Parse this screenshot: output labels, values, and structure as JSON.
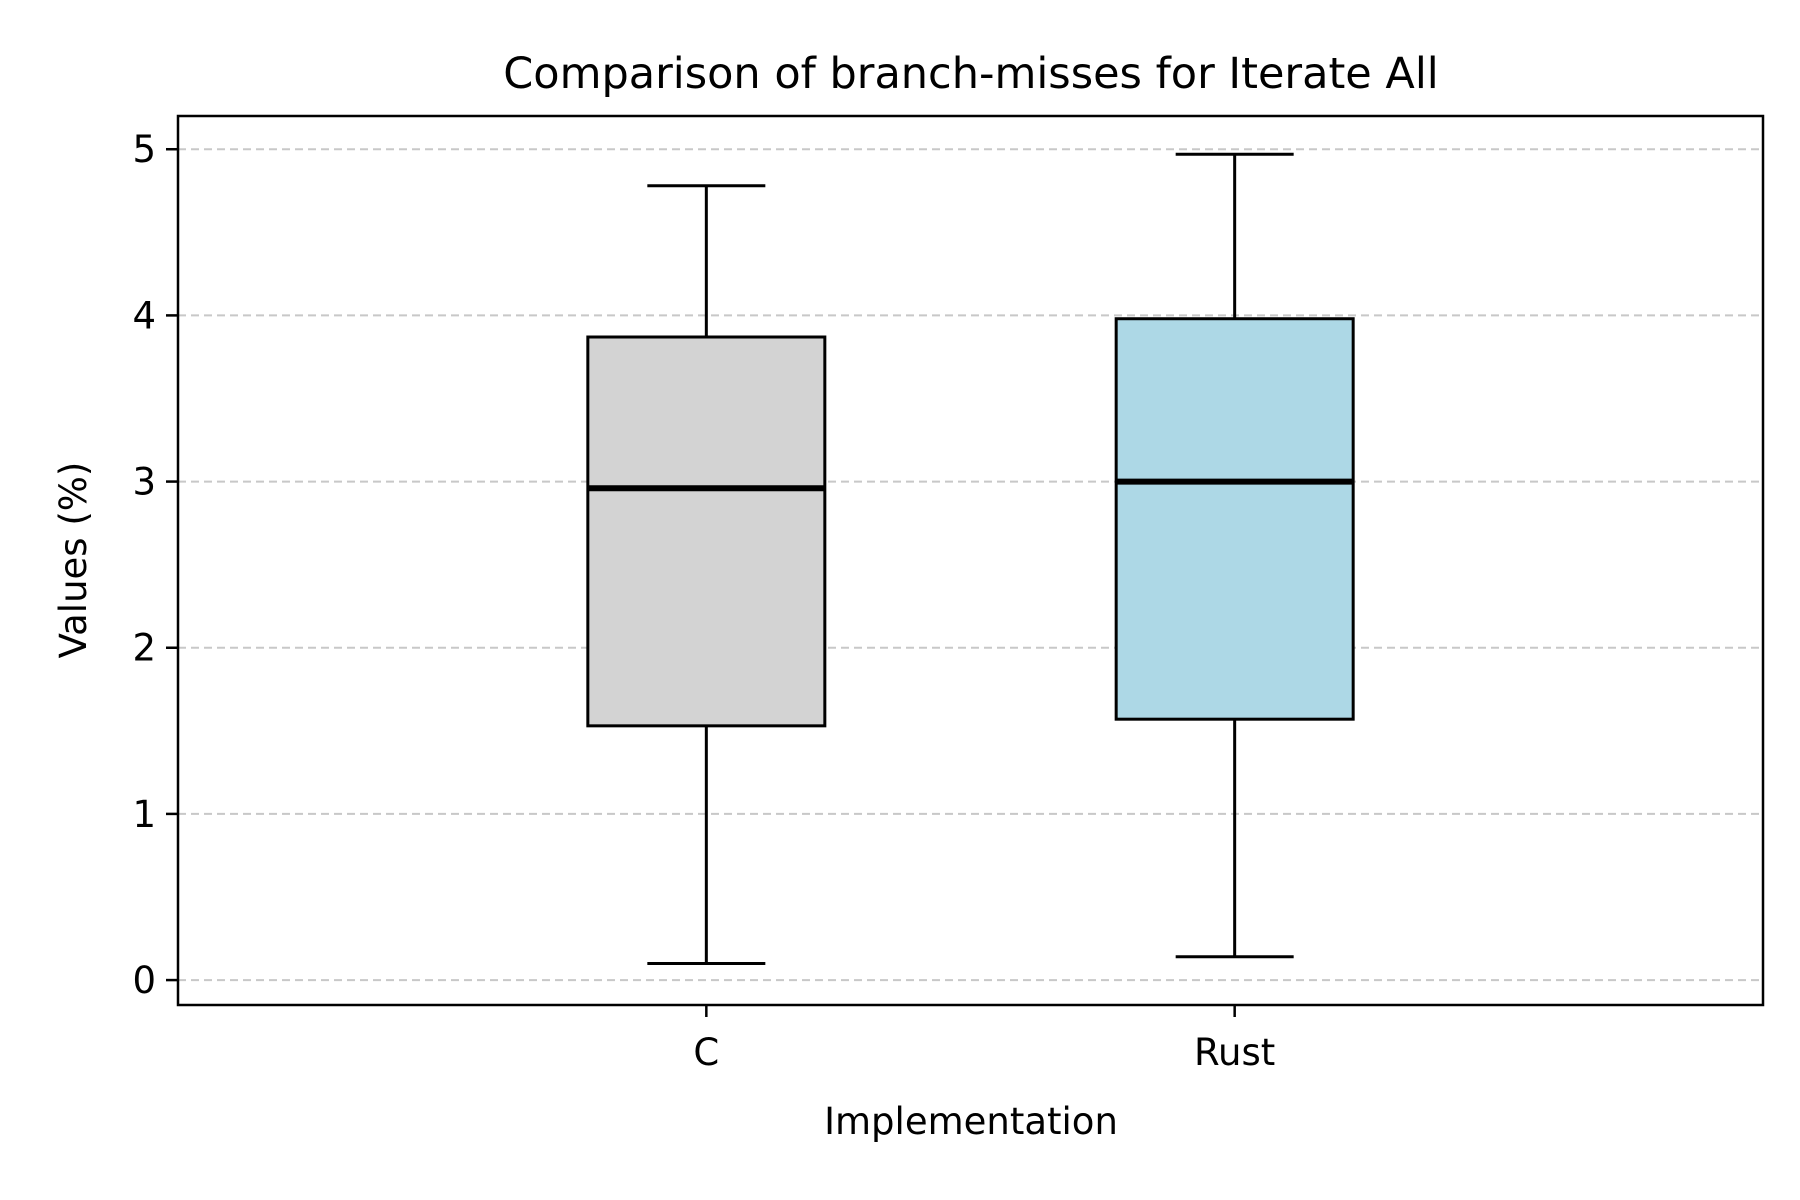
{
  "chart_data": {
    "type": "box",
    "title": "Comparison of branch-misses for Iterate All",
    "xlabel": "Implementation",
    "ylabel": "Values (%)",
    "ylim": [
      -0.15,
      5.2
    ],
    "yticks": [
      0,
      1,
      2,
      3,
      4,
      5
    ],
    "grid": "y-dashed",
    "categories": [
      "C",
      "Rust"
    ],
    "boxes": [
      {
        "name": "C",
        "whisker_low": 0.1,
        "q1": 1.53,
        "median": 2.96,
        "q3": 3.87,
        "whisker_high": 4.78,
        "color": "#d3d3d3"
      },
      {
        "name": "Rust",
        "whisker_low": 0.14,
        "q1": 1.57,
        "median": 3.0,
        "q3": 3.98,
        "whisker_high": 4.97,
        "color": "#add8e6"
      }
    ]
  }
}
